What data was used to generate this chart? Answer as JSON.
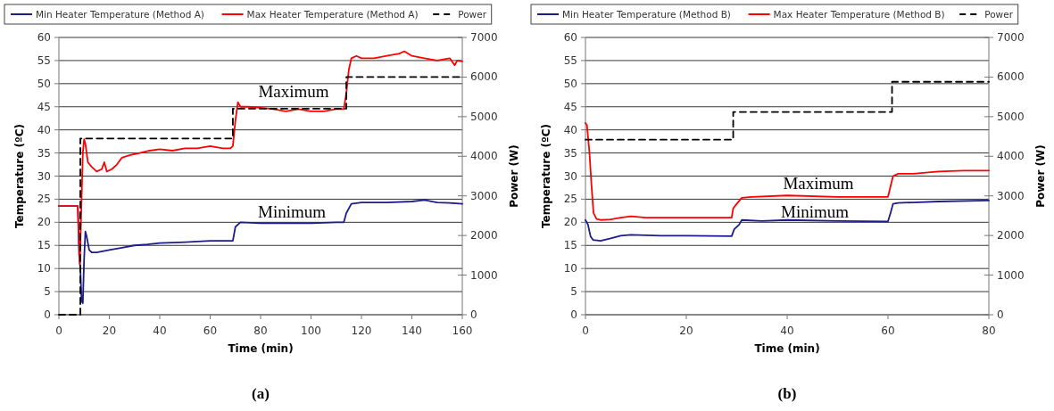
{
  "chart_data": [
    {
      "type": "line",
      "xlabel": "Time (min)",
      "ylabel": "Temperature (ºC)",
      "y2label": "Power (W)",
      "xlim": [
        0,
        160
      ],
      "xticks": [
        0,
        20,
        40,
        60,
        80,
        100,
        120,
        140,
        160
      ],
      "ylim": [
        0,
        60
      ],
      "yticks": [
        0,
        5,
        10,
        15,
        20,
        25,
        30,
        35,
        40,
        45,
        50,
        55,
        60
      ],
      "y2lim": [
        0,
        7000
      ],
      "y2ticks": [
        0,
        1000,
        2000,
        3000,
        4000,
        5000,
        6000,
        7000
      ],
      "grid": "y",
      "legend": "top",
      "annotations": [
        "Maximum",
        "Minimum",
        "(a)"
      ],
      "series": [
        {
          "name": "Min Heater Temperature (Method  A)",
          "color": "#1c1c8c",
          "x": [
            0,
            7.5,
            8,
            8.5,
            9,
            9.5,
            10,
            10.5,
            11,
            12,
            13,
            15,
            20,
            25,
            30,
            35,
            40,
            50,
            60,
            69,
            70,
            72,
            80,
            90,
            100,
            110,
            113,
            114,
            116,
            120,
            130,
            140,
            145,
            150,
            155,
            160
          ],
          "values": [
            23.5,
            23.5,
            13,
            10,
            3,
            2.5,
            12,
            18,
            17,
            14,
            13.5,
            13.5,
            14,
            14.5,
            15,
            15.2,
            15.5,
            15.7,
            16,
            16,
            19,
            20,
            19.8,
            19.8,
            19.8,
            20,
            20,
            22,
            24,
            24.3,
            24.3,
            24.5,
            24.8,
            24.3,
            24.2,
            24
          ]
        },
        {
          "name": "Max Heater Temperature (Method  A)",
          "color": "#ff0000",
          "x": [
            0,
            7.5,
            8.3,
            9,
            9.5,
            10,
            10.5,
            11.5,
            13,
            15,
            17,
            18,
            19,
            21,
            23,
            25,
            28,
            32,
            36,
            40,
            45,
            50,
            55,
            60,
            65,
            68,
            69,
            70,
            71,
            72,
            75,
            80,
            85,
            90,
            95,
            100,
            105,
            110,
            113,
            114,
            115,
            116,
            118,
            120,
            125,
            130,
            135,
            137,
            140,
            145,
            150,
            155,
            157,
            158,
            160
          ],
          "values": [
            23.5,
            23.5,
            11,
            25,
            35,
            38,
            37,
            33,
            32,
            31,
            31.5,
            33,
            31,
            31.5,
            32.5,
            34,
            34.5,
            35,
            35.5,
            35.8,
            35.5,
            36,
            36,
            36.5,
            36,
            36,
            36.5,
            42,
            46,
            45,
            45,
            44.8,
            44.5,
            44,
            44.5,
            44,
            44,
            44.5,
            44.5,
            48,
            53,
            55.5,
            56,
            55.5,
            55.5,
            56,
            56.5,
            57,
            56,
            55.5,
            55,
            55.5,
            54,
            55,
            54.8
          ]
        },
        {
          "name": "Power",
          "color": "#000000",
          "axis": "y2",
          "line_style": "dashed",
          "x": [
            0,
            8.5,
            8.5,
            69,
            69,
            114,
            114,
            160
          ],
          "values": [
            0,
            0,
            4450,
            4450,
            5200,
            5200,
            6000,
            6000
          ]
        }
      ]
    },
    {
      "type": "line",
      "xlabel": "Time (min)",
      "ylabel": "Temperature (ºC)",
      "y2label": "Power (W)",
      "xlim": [
        0,
        80
      ],
      "xticks": [
        0,
        20,
        40,
        60,
        80
      ],
      "ylim": [
        0,
        60
      ],
      "yticks": [
        0,
        5,
        10,
        15,
        20,
        25,
        30,
        35,
        40,
        45,
        50,
        55,
        60
      ],
      "y2lim": [
        0,
        7000
      ],
      "y2ticks": [
        0,
        1000,
        2000,
        3000,
        4000,
        5000,
        6000,
        7000
      ],
      "grid": "y",
      "legend": "top",
      "annotations": [
        "Maximum",
        "Minimum",
        "(b)"
      ],
      "series": [
        {
          "name": "Min Heater Temperature (Method  B)",
          "color": "#1c1c8c",
          "x": [
            0,
            0.5,
            1,
            1.5,
            3,
            5,
            7,
            9,
            15,
            20,
            29,
            29.5,
            30.5,
            31,
            35,
            40,
            50,
            60,
            60.5,
            61,
            62,
            65,
            70,
            80
          ],
          "values": [
            20.5,
            19.5,
            17,
            16.2,
            16,
            16.5,
            17.1,
            17.3,
            17.1,
            17.1,
            17,
            18.5,
            19.5,
            20.5,
            20.3,
            20.5,
            20.3,
            20.2,
            22,
            24,
            24.2,
            24.3,
            24.5,
            24.7
          ]
        },
        {
          "name": "Max Heater Temperature (Method  B)",
          "color": "#ff0000",
          "x": [
            0,
            0.3,
            0.8,
            1.2,
            1.6,
            2.2,
            3,
            5,
            7,
            9,
            12,
            20,
            29,
            29.3,
            30,
            31,
            33,
            40,
            50,
            58,
            60,
            61,
            62,
            65,
            70,
            75,
            80
          ],
          "values": [
            41.5,
            41,
            35,
            28,
            22,
            20.7,
            20.5,
            20.6,
            21,
            21.3,
            21,
            21,
            21,
            23,
            24,
            25.3,
            25.5,
            25.8,
            25.5,
            25.5,
            25.5,
            30,
            30.5,
            30.5,
            31,
            31.2,
            31.2
          ]
        },
        {
          "name": "Power",
          "color": "#000000",
          "axis": "y2",
          "line_style": "dashed",
          "x": [
            0,
            29.3,
            29.3,
            60.8,
            60.8,
            80
          ],
          "values": [
            4420,
            4420,
            5120,
            5120,
            5880,
            5880
          ]
        }
      ]
    }
  ]
}
